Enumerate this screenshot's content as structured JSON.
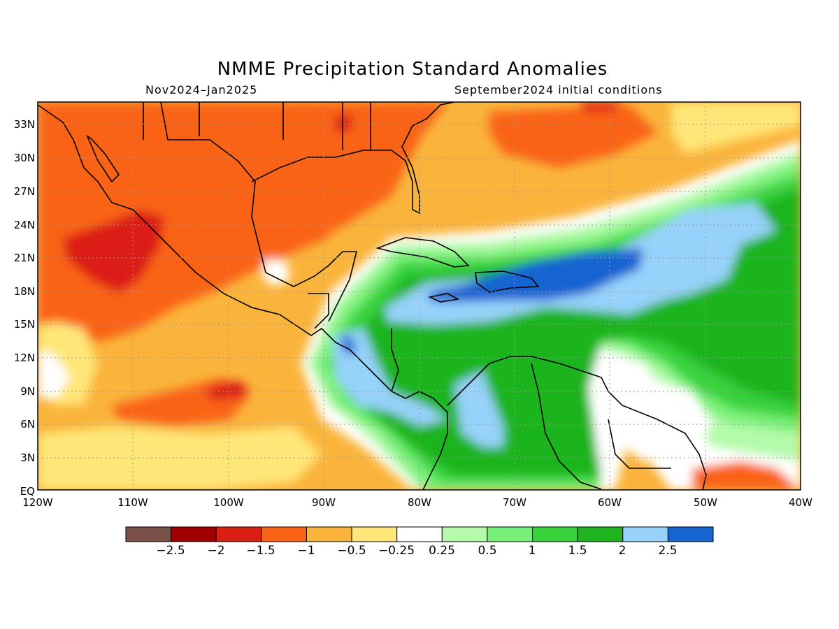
{
  "title": "NMME Precipitation Standard Anomalies",
  "subtitle_left": "Nov2024–Jan2025",
  "subtitle_right": "September2024 initial conditions",
  "map": {
    "lon_range": [
      -120,
      -40
    ],
    "lat_range": [
      0,
      35
    ],
    "lat_ticks": [
      "EQ",
      "3N",
      "6N",
      "9N",
      "12N",
      "15N",
      "18N",
      "21N",
      "24N",
      "27N",
      "30N",
      "33N"
    ],
    "lon_ticks": [
      "120W",
      "110W",
      "100W",
      "90W",
      "80W",
      "70W",
      "60W",
      "50W",
      "40W"
    ],
    "gridlines": "dotted"
  },
  "colorbar": {
    "colors": [
      "#7a5048",
      "#a00000",
      "#dc1e14",
      "#fa6414",
      "#fab43c",
      "#ffe678",
      "#ffffff",
      "#b4faaa",
      "#78f078",
      "#37d23c",
      "#1eb41e",
      "#96d2fa",
      "#1464d2"
    ],
    "labels": [
      "−2.5",
      "−2",
      "−1.5",
      "−1",
      "−0.5",
      "−0.25",
      "0.25",
      "0.5",
      "1",
      "1.5",
      "2",
      "2.5"
    ]
  }
}
